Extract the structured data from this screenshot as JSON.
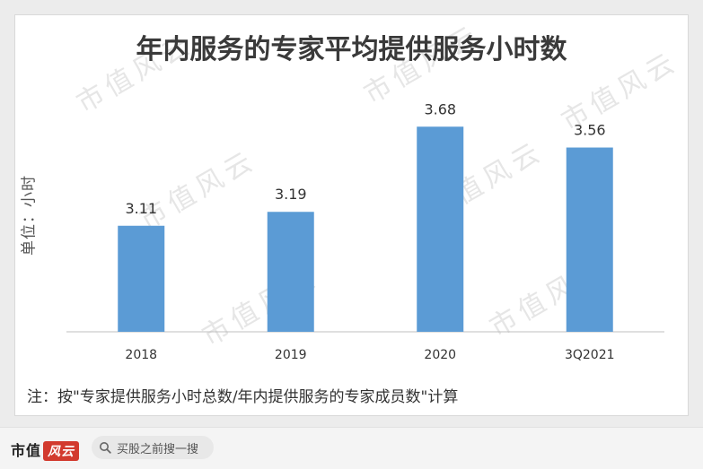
{
  "chart_data": {
    "type": "bar",
    "title": "年内服务的专家平均提供服务小时数",
    "ylabel": "单位：小时",
    "categories": [
      "2018",
      "2019",
      "2020",
      "3Q2021"
    ],
    "values": [
      3.11,
      3.19,
      3.68,
      3.56
    ],
    "value_labels": [
      "3.11",
      "3.19",
      "3.68",
      "3.56"
    ],
    "ylim": [
      2.5,
      3.8
    ],
    "grid": false,
    "legend": "none",
    "bar_color": "#5b9bd5"
  },
  "note": "注：按\"专家提供服务小时总数/年内提供服务的专家成员数\"计算",
  "watermark": "市值风云",
  "footer": {
    "brand_text": "市值",
    "brand_logo_text": "风云",
    "search_placeholder": "买股之前搜一搜",
    "search_icon": "magnifier-icon"
  },
  "colors": {
    "bar": "#5b9bd5",
    "axis": "#bfbfbf",
    "brand_red": "#d23a2e"
  }
}
